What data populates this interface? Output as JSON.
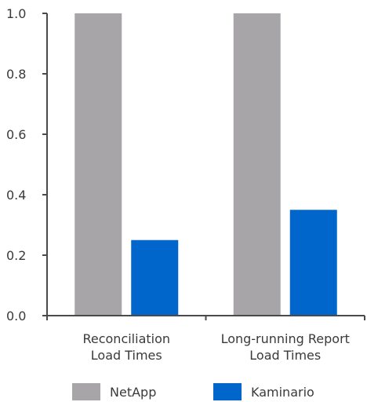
{
  "chart_data": {
    "type": "bar",
    "categories": [
      [
        "Reconciliation",
        "Load Times"
      ],
      [
        "Long-running Report",
        "Load Times"
      ]
    ],
    "series": [
      {
        "name": "NetApp",
        "values": [
          1.0,
          1.0
        ],
        "color": "#a7a5a8"
      },
      {
        "name": "Kaminario",
        "values": [
          0.25,
          0.35
        ],
        "color": "#0066cc"
      }
    ],
    "ylim": [
      0,
      1.0
    ],
    "yticks": [
      0.0,
      0.2,
      0.4,
      0.6,
      0.8,
      1.0
    ],
    "ytick_labels": [
      "0.0",
      "0.2",
      "0.4",
      "0.6",
      "0.8",
      "1.0"
    ],
    "grid": false,
    "legend": "bottom",
    "axis_color": "#4a4a4a"
  }
}
